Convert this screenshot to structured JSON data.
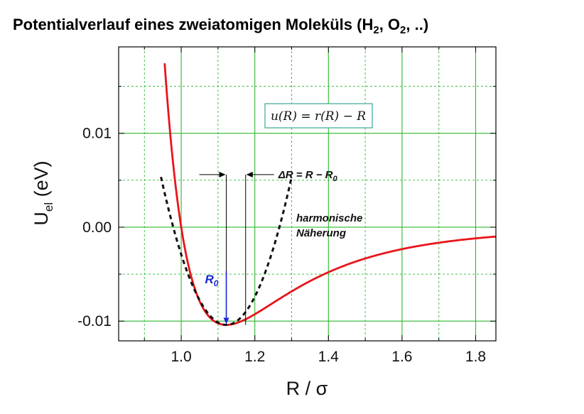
{
  "title": {
    "text": "Potentialverlauf eines zweiatomigen Moleküls (H",
    "sub1": "2",
    "mid": ", O",
    "sub2": "2",
    "tail": ", ..)"
  },
  "chart_data": {
    "type": "line",
    "xlabel": "R / σ",
    "ylabel_main": "U",
    "ylabel_sub": "el",
    "ylabel_unit": " (eV)",
    "xlim": [
      0.83,
      1.855
    ],
    "ylim": [
      -0.0121,
      0.0192
    ],
    "x_ticks": [
      1.0,
      1.2,
      1.4,
      1.6,
      1.8
    ],
    "x_tick_labels": [
      "1.0",
      "1.2",
      "1.4",
      "1.6",
      "1.8"
    ],
    "y_ticks": [
      -0.01,
      0.0,
      0.01
    ],
    "y_tick_labels": [
      "-0.01",
      "0.00",
      "0.01"
    ],
    "grid": true,
    "series": [
      {
        "kind": "lennard-jones",
        "color": "#e8151b",
        "sample_points": {
          "x": [
            0.96,
            1.0,
            1.05,
            1.1,
            1.1225,
            1.2,
            1.3,
            1.4,
            1.5,
            1.6,
            1.8
          ],
          "y": [
            0.0175,
            0.0,
            -0.0077,
            -0.0102,
            -0.0104,
            -0.0087,
            -0.0061,
            -0.0048,
            -0.0033,
            -0.0023,
            -0.0012
          ]
        },
        "epsilon": 0.0104,
        "sigma": 1.0
      },
      {
        "kind": "harmonic",
        "color": "#111111",
        "center": 1.1225,
        "depth": -0.0104,
        "curvature": 0.5,
        "x_range": [
          0.945,
          1.3
        ]
      }
    ],
    "annotations": {
      "formula": "u(R) = r(R) − R",
      "delta": "ΔR = R − R",
      "delta_sub": "0",
      "r0": "R",
      "r0_sub": "0",
      "harm_line1": "harmonische",
      "harm_line2": "Näherung",
      "R0_value": 1.1225,
      "R_value": 1.175,
      "delta_level": 0.0056
    },
    "colors": {
      "grid": "#2eb82e",
      "lj": "#e8151b",
      "harmonic": "#111111",
      "r0_arrow": "#1a28d6",
      "formula_box": "#3aa596"
    }
  }
}
